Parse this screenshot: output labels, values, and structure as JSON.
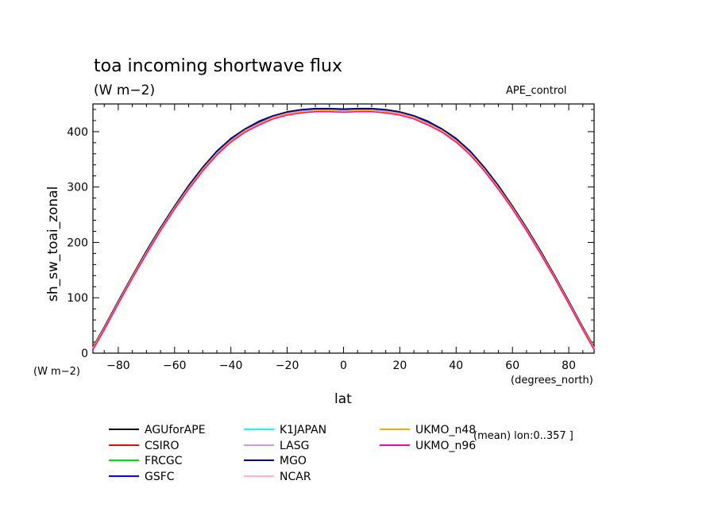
{
  "chart_data": {
    "type": "line",
    "title": "toa incoming shortwave flux",
    "units": "(W m−2)",
    "experiment": "APE_control",
    "ylabel": "sh_sw_toai_zonal",
    "y_units": "(W m−2)",
    "xlabel": "lat",
    "x_units": "(degrees_north)",
    "note": "(mean) lon:0..357 ]",
    "xlim": [
      -89,
      89
    ],
    "ylim": [
      0,
      450
    ],
    "xticks": [
      -80,
      -60,
      -40,
      -20,
      0,
      20,
      40,
      60,
      80
    ],
    "yticks": [
      0,
      100,
      200,
      300,
      400
    ],
    "grid": false,
    "legend_position": "bottom",
    "x": [
      -89,
      -85,
      -80,
      -75,
      -70,
      -65,
      -60,
      -55,
      -50,
      -45,
      -40,
      -35,
      -30,
      -25,
      -20,
      -15,
      -10,
      -5,
      0,
      5,
      10,
      15,
      20,
      25,
      30,
      35,
      40,
      45,
      50,
      55,
      60,
      65,
      70,
      75,
      80,
      85,
      89
    ],
    "series": [
      {
        "name": "AGUforAPE",
        "color": "#000000",
        "values": [
          11,
          47,
          94,
          140,
          184,
          226,
          265,
          302,
          335,
          364,
          387,
          404,
          418,
          428,
          435,
          439,
          441,
          441,
          440,
          441,
          441,
          439,
          435,
          428,
          418,
          404,
          387,
          364,
          335,
          302,
          265,
          226,
          184,
          140,
          94,
          47,
          11
        ]
      },
      {
        "name": "CSIRO",
        "color": "#ff0000",
        "values": [
          8,
          43,
          90,
          136,
          180,
          222,
          261,
          297,
          330,
          359,
          382,
          400,
          413,
          424,
          431,
          435,
          437,
          437,
          436,
          437,
          437,
          435,
          431,
          424,
          413,
          400,
          382,
          359,
          330,
          297,
          261,
          222,
          180,
          136,
          90,
          43,
          8
        ]
      },
      {
        "name": "FRCGC",
        "color": "#00dd00",
        "values": [
          10,
          45,
          92,
          138,
          182,
          224,
          263,
          300,
          333,
          362,
          385,
          402,
          416,
          426,
          433,
          437,
          439,
          439,
          438,
          439,
          439,
          437,
          433,
          426,
          416,
          402,
          385,
          362,
          333,
          300,
          263,
          224,
          182,
          138,
          92,
          45,
          10
        ]
      },
      {
        "name": "GSFC",
        "color": "#0000ff",
        "values": [
          10,
          46,
          93,
          139,
          183,
          225,
          264,
          301,
          334,
          363,
          386,
          403,
          417,
          427,
          434,
          438,
          440,
          440,
          439,
          440,
          440,
          438,
          434,
          427,
          417,
          403,
          386,
          363,
          334,
          301,
          264,
          225,
          183,
          139,
          93,
          46,
          10
        ]
      },
      {
        "name": "K1JAPAN",
        "color": "#00ffff",
        "values": [
          10,
          45,
          92,
          138,
          182,
          224,
          263,
          299,
          332,
          361,
          384,
          402,
          415,
          426,
          433,
          437,
          439,
          439,
          438,
          439,
          439,
          437,
          433,
          426,
          415,
          402,
          384,
          361,
          332,
          299,
          263,
          224,
          182,
          138,
          92,
          45,
          10
        ]
      },
      {
        "name": "LASG",
        "color": "#cc99dd",
        "values": [
          9,
          44,
          91,
          137,
          181,
          223,
          262,
          298,
          331,
          360,
          383,
          401,
          414,
          425,
          432,
          436,
          438,
          438,
          437,
          438,
          438,
          436,
          432,
          425,
          414,
          401,
          383,
          360,
          331,
          298,
          262,
          223,
          181,
          137,
          91,
          44,
          9
        ]
      },
      {
        "name": "MGO",
        "color": "#000080",
        "values": [
          11,
          47,
          94,
          140,
          185,
          227,
          266,
          303,
          336,
          365,
          388,
          405,
          419,
          429,
          436,
          440,
          442,
          442,
          441,
          442,
          442,
          440,
          436,
          429,
          419,
          405,
          388,
          365,
          336,
          303,
          266,
          227,
          185,
          140,
          94,
          47,
          11
        ]
      },
      {
        "name": "NCAR",
        "color": "#ffb6c1",
        "values": [
          9,
          44,
          91,
          137,
          181,
          223,
          262,
          298,
          331,
          360,
          383,
          401,
          414,
          425,
          432,
          436,
          438,
          438,
          437,
          438,
          438,
          436,
          432,
          425,
          414,
          401,
          383,
          360,
          331,
          298,
          262,
          223,
          181,
          137,
          91,
          44,
          9
        ]
      },
      {
        "name": "UKMO_n48",
        "color": "#ffa500",
        "values": [
          10,
          45,
          92,
          138,
          182,
          224,
          263,
          299,
          332,
          361,
          384,
          402,
          415,
          426,
          433,
          437,
          439,
          439,
          438,
          439,
          439,
          437,
          433,
          426,
          415,
          402,
          384,
          361,
          332,
          299,
          263,
          224,
          182,
          138,
          92,
          45,
          10
        ]
      },
      {
        "name": "UKMO_n96",
        "color": "#ff00aa",
        "values": [
          6,
          42,
          89,
          135,
          179,
          221,
          260,
          296,
          329,
          358,
          381,
          399,
          412,
          423,
          430,
          434,
          436,
          436,
          435,
          436,
          436,
          434,
          430,
          423,
          412,
          399,
          381,
          358,
          329,
          296,
          260,
          221,
          179,
          135,
          89,
          42,
          6
        ]
      }
    ]
  }
}
